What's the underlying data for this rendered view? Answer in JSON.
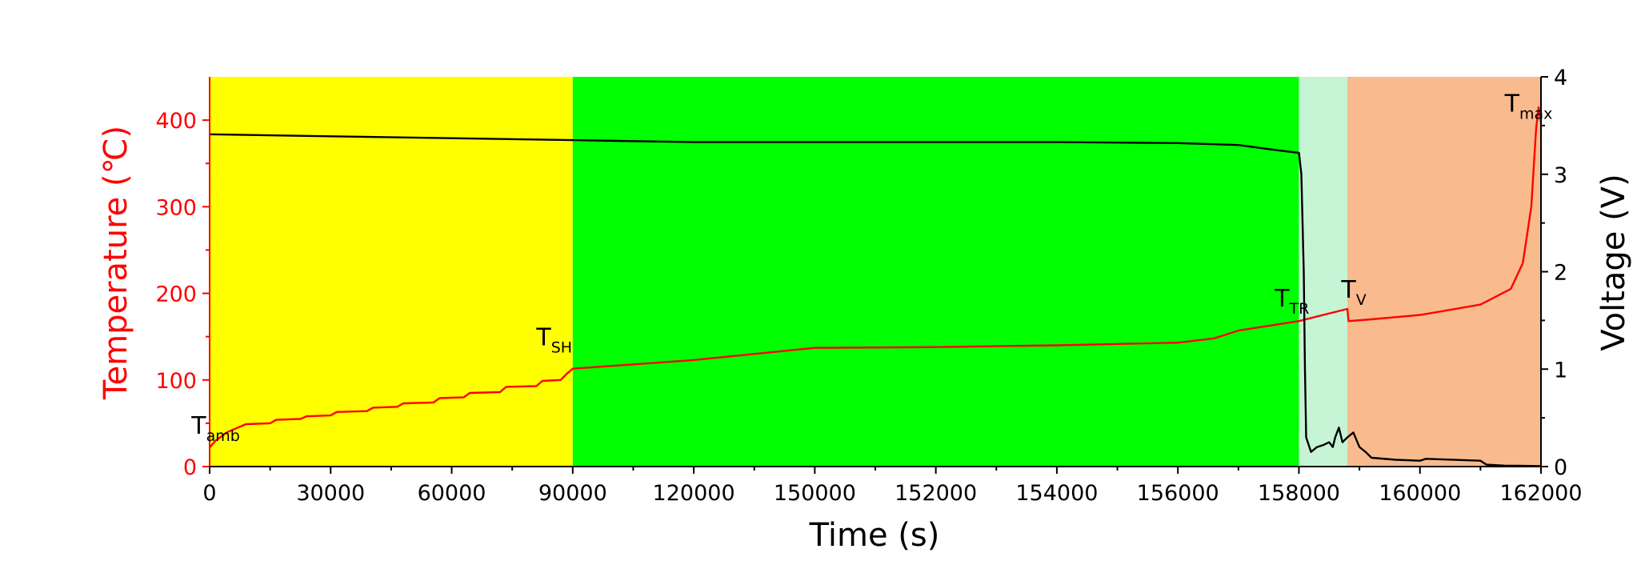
{
  "chart_data": {
    "type": "line",
    "xlabel": "Time (s)",
    "ylabel_left": "Temperature (℃)",
    "ylabel_right": "Voltage (V)",
    "x_tick_labels": [
      "0",
      "30000",
      "60000",
      "90000",
      "120000",
      "150000",
      "152000",
      "154000",
      "156000",
      "158000",
      "160000",
      "162000"
    ],
    "y_left_ticks": [
      0,
      100,
      200,
      300,
      400
    ],
    "y_left_range": [
      0,
      450
    ],
    "y_right_ticks": [
      0,
      1,
      2,
      3,
      4
    ],
    "y_right_range": [
      0,
      4
    ],
    "regions": [
      {
        "from_tick": 0,
        "to_tick": 3,
        "color": "#ffff00"
      },
      {
        "from_tick": 3,
        "to_tick": 9,
        "color": "#00ff00"
      },
      {
        "from_tick": 9,
        "to_tick": 9.4,
        "color": "#c5f5d5"
      },
      {
        "from_tick": 9.4,
        "to_tick": 11,
        "color": "#f9bb8e"
      }
    ],
    "series": [
      {
        "axis": "left",
        "color": "#ff0000",
        "points": [
          [
            0,
            22
          ],
          [
            0.05,
            30
          ],
          [
            0.15,
            40
          ],
          [
            0.3,
            49
          ],
          [
            0.5,
            50
          ],
          [
            0.55,
            54
          ],
          [
            0.75,
            55
          ],
          [
            0.8,
            58
          ],
          [
            1.0,
            59
          ],
          [
            1.05,
            63
          ],
          [
            1.3,
            64
          ],
          [
            1.35,
            68
          ],
          [
            1.55,
            69
          ],
          [
            1.6,
            73
          ],
          [
            1.85,
            74
          ],
          [
            1.9,
            79
          ],
          [
            2.1,
            80
          ],
          [
            2.15,
            85
          ],
          [
            2.4,
            86
          ],
          [
            2.45,
            92
          ],
          [
            2.7,
            93
          ],
          [
            2.75,
            99
          ],
          [
            2.9,
            100
          ],
          [
            2.95,
            107
          ],
          [
            3.0,
            113
          ],
          [
            4.0,
            123
          ],
          [
            5.0,
            137
          ],
          [
            6.0,
            138
          ],
          [
            7.0,
            140
          ],
          [
            8.0,
            143
          ],
          [
            8.3,
            148
          ],
          [
            8.5,
            157
          ],
          [
            9.0,
            168
          ],
          [
            9.4,
            182
          ],
          [
            9.41,
            168
          ],
          [
            9.6,
            170
          ],
          [
            10.0,
            175
          ],
          [
            10.5,
            187
          ],
          [
            10.75,
            205
          ],
          [
            10.85,
            235
          ],
          [
            10.92,
            300
          ],
          [
            10.96,
            390
          ],
          [
            10.98,
            415
          ],
          [
            11.0,
            398
          ]
        ]
      },
      {
        "axis": "right",
        "color": "#000000",
        "points": [
          [
            0,
            3.41
          ],
          [
            1.0,
            3.39
          ],
          [
            2.0,
            3.37
          ],
          [
            3.0,
            3.35
          ],
          [
            4.0,
            3.33
          ],
          [
            5.0,
            3.33
          ],
          [
            6.0,
            3.33
          ],
          [
            7.0,
            3.33
          ],
          [
            8.0,
            3.32
          ],
          [
            8.5,
            3.3
          ],
          [
            8.8,
            3.25
          ],
          [
            9.0,
            3.22
          ],
          [
            9.02,
            3.0
          ],
          [
            9.04,
            2.0
          ],
          [
            9.05,
            1.0
          ],
          [
            9.06,
            0.3
          ],
          [
            9.1,
            0.15
          ],
          [
            9.15,
            0.2
          ],
          [
            9.2,
            0.22
          ],
          [
            9.25,
            0.25
          ],
          [
            9.28,
            0.2
          ],
          [
            9.3,
            0.3
          ],
          [
            9.33,
            0.4
          ],
          [
            9.36,
            0.25
          ],
          [
            9.4,
            0.3
          ],
          [
            9.45,
            0.35
          ],
          [
            9.5,
            0.2
          ],
          [
            9.55,
            0.15
          ],
          [
            9.6,
            0.09
          ],
          [
            9.8,
            0.07
          ],
          [
            10.0,
            0.06
          ],
          [
            10.05,
            0.08
          ],
          [
            10.5,
            0.06
          ],
          [
            10.55,
            0.02
          ],
          [
            10.7,
            0.01
          ],
          [
            11.0,
            0.005
          ]
        ]
      }
    ],
    "annotations": [
      {
        "main": "T",
        "sub": "amb",
        "x": -0.15,
        "y": 38
      },
      {
        "main": "T",
        "sub": "SH",
        "x": 2.7,
        "y": 140
      },
      {
        "main": "T",
        "sub": "TR",
        "x": 8.8,
        "y": 185
      },
      {
        "main": "T",
        "sub": "V",
        "x": 9.35,
        "y": 195
      },
      {
        "main": "T",
        "sub": "max",
        "x": 10.7,
        "y": 410
      }
    ]
  }
}
